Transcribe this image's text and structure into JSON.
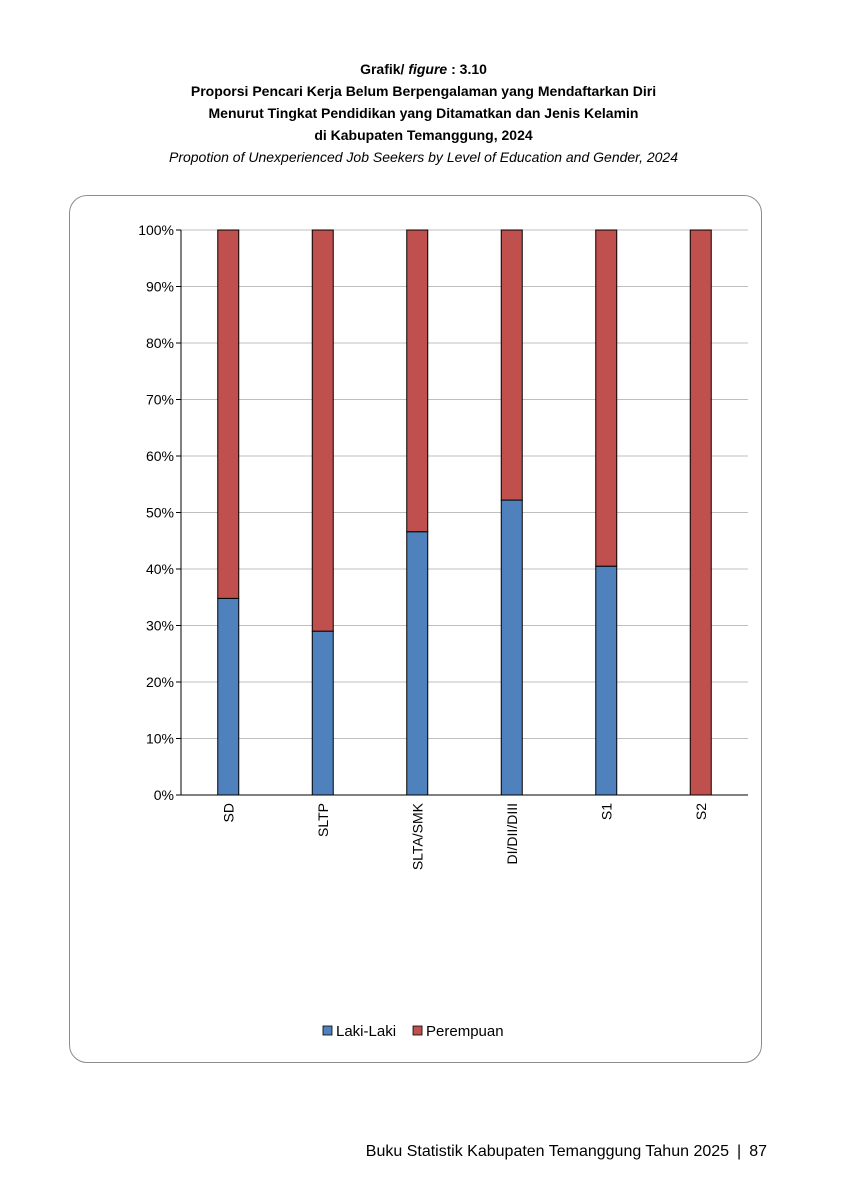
{
  "header": {
    "figure_prefix": "Grafik/",
    "figure_word": "figure",
    "figure_number": ": 3.10",
    "title_lines": [
      "Proporsi Pencari Kerja Belum Berpengalaman yang Mendaftarkan Diri",
      "Menurut Tingkat Pendidikan yang Ditamatkan dan Jenis Kelamin",
      "di Kabupaten Temanggung, 2024"
    ],
    "subtitle": "Propotion of Unexperienced Job Seekers by Level of Education and Gender, 2024"
  },
  "chart_data": {
    "type": "bar",
    "stacked": true,
    "categories": [
      "SD",
      "SLTP",
      "SLTA/SMK",
      "DI/DII/DIII",
      "S1",
      "S2"
    ],
    "series": [
      {
        "name": "Laki-Laki",
        "color": "#4f81bd",
        "values": [
          34.8,
          29.0,
          46.6,
          52.2,
          40.5,
          0.0
        ]
      },
      {
        "name": "Perempuan",
        "color": "#c0504d",
        "values": [
          65.2,
          71.0,
          53.4,
          47.8,
          59.5,
          100.0
        ]
      }
    ],
    "ylim": [
      0,
      100
    ],
    "yticks": [
      "0%",
      "10%",
      "20%",
      "30%",
      "40%",
      "50%",
      "60%",
      "70%",
      "80%",
      "90%",
      "100%"
    ],
    "grid": true,
    "legend_position": "bottom",
    "xlabel": "",
    "ylabel": ""
  },
  "footer": {
    "text": "Buku Statistik Kabupaten Temanggung Tahun 2025",
    "separator": "|",
    "page_number": "87"
  }
}
